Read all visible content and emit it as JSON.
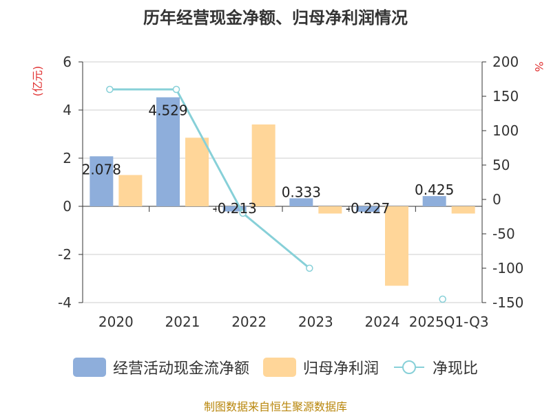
{
  "title": "历年经营现金净额、归母净利润情况",
  "source": "制图数据来自恒生聚源数据库",
  "chart_data": {
    "type": "bar",
    "categories": [
      "2020",
      "2021",
      "2022",
      "2023",
      "2024",
      "2025Q1-Q3"
    ],
    "y_left": {
      "label": "(亿元)",
      "min": -4,
      "max": 6,
      "ticks": [
        6,
        4,
        2,
        0,
        -2,
        -4
      ]
    },
    "y_right": {
      "label": "%",
      "min": -150,
      "max": 200,
      "ticks": [
        200,
        150,
        100,
        50,
        0,
        -50,
        -100,
        -150
      ]
    },
    "series": [
      {
        "name": "经营活动现金流净额",
        "type": "bar",
        "axis": "left",
        "color": "#8eaedb",
        "values": [
          2.078,
          4.529,
          -0.213,
          0.333,
          -0.227,
          0.425
        ],
        "labels": [
          "2.078",
          "4.529",
          "-0.213",
          "0.333",
          "-0.227",
          "0.425"
        ]
      },
      {
        "name": "归母净利润",
        "type": "bar",
        "axis": "left",
        "color": "#ffd699",
        "values": [
          1.3,
          2.85,
          3.4,
          -0.3,
          -3.3,
          -0.3
        ]
      },
      {
        "name": "净现比",
        "type": "line",
        "axis": "right",
        "color": "#87d0d8",
        "values": [
          160,
          160,
          -20,
          -100,
          null,
          -145
        ]
      }
    ]
  },
  "legend": [
    {
      "label": "经营活动现金流净额",
      "swatch": "bar",
      "color": "#8eaedb"
    },
    {
      "label": "归母净利润",
      "swatch": "bar",
      "color": "#ffd699"
    },
    {
      "label": "净现比",
      "swatch": "line",
      "color": "#87d0d8"
    }
  ]
}
